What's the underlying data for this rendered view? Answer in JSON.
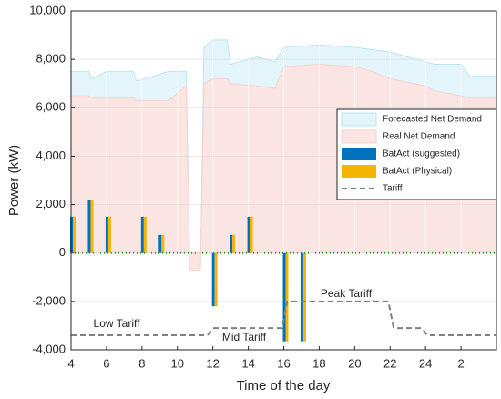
{
  "chart_data": {
    "type": "combo",
    "xlabel": "Time of the day",
    "ylabel": "Power (kW)",
    "xlim": [
      4,
      28
    ],
    "ylim": [
      -4000,
      10000
    ],
    "xticks": [
      4,
      6,
      8,
      10,
      12,
      14,
      16,
      18,
      20,
      22,
      24,
      {
        "value": 26,
        "label": "2"
      }
    ],
    "yticks": [
      {
        "value": -4000,
        "label": "-4,000"
      },
      {
        "value": -2000,
        "label": "-2,000"
      },
      0,
      {
        "value": 2000,
        "label": "2,000"
      },
      {
        "value": 4000,
        "label": "4,000"
      },
      {
        "value": 6000,
        "label": "6,000"
      },
      {
        "value": 8000,
        "label": "8,000"
      },
      {
        "value": 10000,
        "label": "10,000"
      }
    ],
    "grid": true,
    "legend": "east",
    "x": [
      4,
      5,
      5.2,
      6,
      7.5,
      7.7,
      9.5,
      10.5,
      10.7,
      11.3,
      11.5,
      12,
      12.8,
      13,
      14.5,
      15.5,
      16,
      18,
      20,
      21,
      22,
      24,
      24.5,
      26,
      26.5,
      28
    ],
    "series": [
      {
        "name": "Forecasted Net Demand",
        "type": "area",
        "color": "#e3f4fb",
        "edge": "#bfe3f2",
        "values": [
          7500,
          7500,
          7200,
          7500,
          7500,
          7100,
          7500,
          7500,
          -600,
          -600,
          8500,
          8800,
          8800,
          7800,
          8100,
          7900,
          8500,
          8600,
          8500,
          8400,
          8300,
          7900,
          7800,
          7800,
          7300,
          7300
        ]
      },
      {
        "name": "Real Net Demand",
        "type": "area",
        "color": "#fbe5e3",
        "edge": "#f6d3cf",
        "values": [
          6500,
          6500,
          6400,
          6400,
          6400,
          6300,
          6300,
          6900,
          -700,
          -700,
          7000,
          7200,
          7200,
          7000,
          6900,
          6800,
          7700,
          7800,
          7700,
          7500,
          7200,
          6900,
          6700,
          6500,
          6400,
          6400
        ]
      },
      {
        "name": "BatAct (suggested)",
        "type": "bar",
        "color": "#0072bd",
        "x": [
          4,
          5,
          6,
          8,
          9,
          12,
          13,
          14,
          16,
          17
        ],
        "values": [
          1500,
          2200,
          1500,
          1500,
          750,
          -2200,
          750,
          1500,
          -3650,
          -3650
        ]
      },
      {
        "name": "BatAct (Physical)",
        "type": "bar",
        "color": "#f5b400",
        "x": [
          4,
          5,
          6,
          8,
          9,
          12,
          13,
          14,
          16,
          17
        ],
        "values": [
          1500,
          2200,
          1500,
          1500,
          750,
          -2200,
          750,
          1500,
          -3650,
          -3650
        ]
      },
      {
        "name": "Tariff",
        "type": "line",
        "color": "#808080",
        "x": [
          4,
          11.7,
          12,
          15.9,
          16.2,
          21.9,
          22.2,
          23.8,
          24.1,
          28
        ],
        "values": [
          -3400,
          -3400,
          -3100,
          -3100,
          -2000,
          -2000,
          -3100,
          -3100,
          -3400,
          -3400
        ]
      }
    ],
    "annotations": [
      "Low Tariff",
      "Mid Tariff",
      "Peak Tariff"
    ]
  }
}
